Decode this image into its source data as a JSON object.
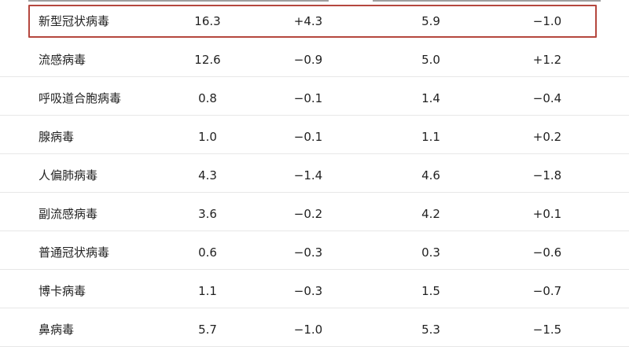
{
  "highlight_color": "#b5473e",
  "rows": [
    [
      "新型冠状病毒",
      "16.3",
      "+4.3",
      "5.9",
      "−1.0"
    ],
    [
      "流感病毒",
      "12.6",
      "−0.9",
      "5.0",
      "+1.2"
    ],
    [
      "呼吸道合胞病毒",
      "0.8",
      "−0.1",
      "1.4",
      "−0.4"
    ],
    [
      "腺病毒",
      "1.0",
      "−0.1",
      "1.1",
      "+0.2"
    ],
    [
      "人偏肺病毒",
      "4.3",
      "−1.4",
      "4.6",
      "−1.8"
    ],
    [
      "副流感病毒",
      "3.6",
      "−0.2",
      "4.2",
      "+0.1"
    ],
    [
      "普通冠状病毒",
      "0.6",
      "−0.3",
      "0.3",
      "−0.6"
    ],
    [
      "博卡病毒",
      "1.1",
      "−0.3",
      "1.5",
      "−0.7"
    ],
    [
      "鼻病毒",
      "5.7",
      "−1.0",
      "5.3",
      "−1.5"
    ]
  ]
}
